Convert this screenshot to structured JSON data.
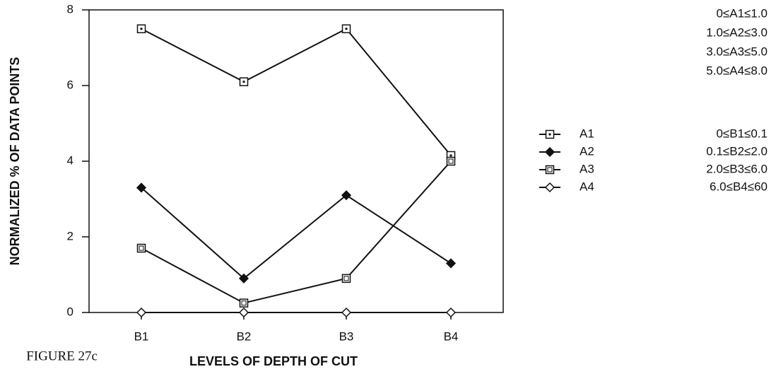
{
  "chart_data": {
    "type": "line",
    "caption": "FIGURE 27c",
    "x_label": "LEVELS OF DEPTH OF CUT",
    "y_label": "NORMALIZED % OF DATA POINTS",
    "categories": [
      "B1",
      "B2",
      "B3",
      "B4"
    ],
    "series": [
      {
        "name": "A1",
        "color": "#111111",
        "marker": "square-dot",
        "values": [
          7.5,
          6.1,
          7.5,
          4.15
        ]
      },
      {
        "name": "A2",
        "color": "#111111",
        "marker": "diamond-filled",
        "values": [
          3.3,
          0.9,
          3.1,
          1.3
        ]
      },
      {
        "name": "A3",
        "color": "#111111",
        "marker": "square-double",
        "values": [
          1.7,
          0.25,
          0.9,
          4.0
        ]
      },
      {
        "name": "A4",
        "color": "#111111",
        "marker": "diamond-open",
        "values": [
          0,
          0,
          0,
          0
        ]
      }
    ],
    "ylim": [
      0,
      8
    ],
    "yticks": [
      0,
      2,
      4,
      6,
      8
    ],
    "grid": false,
    "annotations": [
      "0≤A1≤1.0",
      "1.0≤A2≤3.0",
      "3.0≤A3≤5.0",
      "5.0≤A4≤8.0",
      "0≤B1≤0.1",
      "0.1≤B2≤2.0",
      "2.0≤B3≤6.0",
      "6.0≤B4≤60"
    ]
  }
}
